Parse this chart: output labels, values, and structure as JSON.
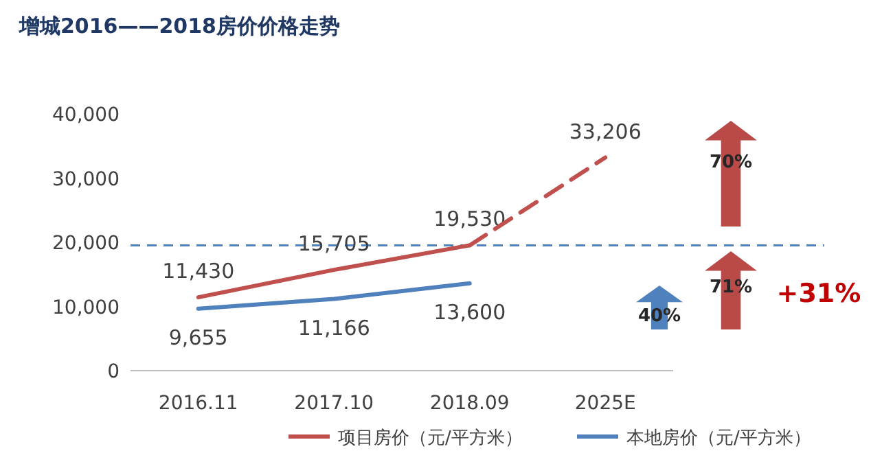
{
  "chart_data": {
    "type": "line",
    "title": "增城2016——2018房价价格走势",
    "categories": [
      "2016.11",
      "2017.10",
      "2018.09",
      "2025E"
    ],
    "series": [
      {
        "name": "项目房价（元/平方米）",
        "color": "#c0504d",
        "values": [
          11430,
          15705,
          19530,
          null
        ],
        "value_labels": [
          "11,430",
          "15,705",
          "19,530",
          null
        ]
      },
      {
        "color": "#c0504d",
        "line_style": "dashed",
        "values": [
          null,
          null,
          19530,
          33206
        ],
        "value_labels": [
          null,
          null,
          null,
          "33,206"
        ]
      },
      {
        "name": "本地房价（元/平方米）",
        "color": "#4f81bd",
        "values": [
          9655,
          11166,
          13600,
          null
        ],
        "value_labels": [
          "9,655",
          "11,166",
          "13,600",
          null
        ]
      }
    ],
    "ylim": [
      0,
      40000
    ],
    "yticks": [
      0,
      {
        "value": 10000,
        "label": "10,000"
      },
      {
        "value": 20000,
        "label": "20,000"
      },
      {
        "value": 30000,
        "label": "30,000"
      },
      {
        "value": 40000,
        "label": "40,000"
      }
    ],
    "ref_lines": [
      {
        "axis": "y",
        "value": 19530,
        "color": "#4f81bd",
        "line_style": "dashed"
      }
    ],
    "annotations": [
      "70%",
      "71%",
      "40%",
      "+31%"
    ],
    "legend": "bottom",
    "grid": false,
    "marker": "none"
  }
}
